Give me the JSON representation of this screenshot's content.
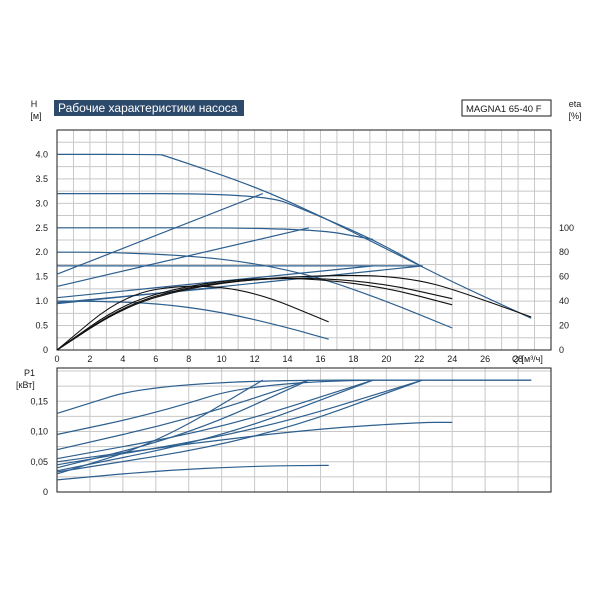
{
  "header": {
    "title": "Рабочие характеристики насоса",
    "model": "MAGNA1 65-40 F"
  },
  "chart_data": [
    {
      "type": "line",
      "title": "Рабочие характеристики насоса",
      "ylabel_name": "H",
      "ylabel_unit": "[м]",
      "y2label_name": "eta",
      "y2label_unit": "[%]",
      "xlabel": "Q [м³/ч]",
      "xlim": [
        0,
        30
      ],
      "ylim": [
        0,
        4.5
      ],
      "y2lim": [
        0,
        180
      ],
      "x_ticks": [
        "0",
        "2",
        "4",
        "6",
        "8",
        "10",
        "12",
        "14",
        "16",
        "18",
        "20",
        "22",
        "24",
        "26",
        "28"
      ],
      "y_ticks": [
        "0",
        "0.5",
        "1.0",
        "1.5",
        "2.0",
        "2.5",
        "3.0",
        "3.5",
        "4.0"
      ],
      "y2_ticks": [
        "0",
        "20",
        "40",
        "60",
        "80",
        "100"
      ],
      "grid": true,
      "head_series": [
        {
          "x": [
            0,
            6.2,
            6.5,
            12,
            16,
            20,
            24,
            28.8
          ],
          "y": [
            4.0,
            4.0,
            3.98,
            3.35,
            2.74,
            2.07,
            1.39,
            0.65
          ]
        },
        {
          "x": [
            0,
            12.5,
            15.3,
            19.2,
            22.2
          ],
          "y": [
            3.2,
            3.2,
            2.83,
            2.26,
            1.7
          ]
        },
        {
          "x": [
            0,
            15.3,
            19.2
          ],
          "y": [
            2.5,
            2.5,
            2.26
          ]
        },
        {
          "x": [
            0,
            22.2
          ],
          "y": [
            1.72,
            1.72
          ]
        },
        {
          "x": [
            0,
            3,
            8,
            12,
            16,
            20,
            24
          ],
          "y": [
            2.0,
            2.0,
            1.93,
            1.78,
            1.48,
            1.0,
            0.45
          ]
        },
        {
          "x": [
            0,
            2,
            6,
            10,
            14,
            16.5
          ],
          "y": [
            1.0,
            1.0,
            0.96,
            0.78,
            0.46,
            0.22
          ]
        },
        {
          "x": [
            0,
            12.5
          ],
          "y": [
            1.55,
            3.2
          ]
        },
        {
          "x": [
            0,
            15.3
          ],
          "y": [
            1.3,
            2.5
          ]
        },
        {
          "x": [
            0,
            19.2
          ],
          "y": [
            1.07,
            1.72
          ]
        },
        {
          "x": [
            0,
            22.2
          ],
          "y": [
            0.95,
            1.72
          ]
        },
        {
          "x": [
            0,
            10
          ],
          "y": [
            0.97,
            1.28
          ]
        }
      ],
      "efficiency_series": [
        {
          "x": [
            0,
            4,
            8,
            12,
            16,
            19.5,
            22,
            24,
            28.8
          ],
          "y": [
            0,
            35,
            51,
            58,
            61,
            61,
            57,
            50,
            27
          ]
        },
        {
          "x": [
            0,
            4,
            8,
            12,
            16,
            20,
            24
          ],
          "y": [
            0,
            38,
            53,
            59,
            58,
            51,
            37
          ]
        },
        {
          "x": [
            0,
            4,
            8,
            12,
            16.5
          ],
          "y": [
            0,
            45,
            54,
            48,
            23
          ]
        },
        {
          "x": [
            0,
            4,
            8,
            12,
            16,
            20,
            24
          ],
          "y": [
            0,
            36,
            52,
            58,
            59,
            54,
            42
          ]
        }
      ]
    },
    {
      "type": "line",
      "ylabel_name": "P1",
      "ylabel_unit": "[кВт]",
      "xlim": [
        0,
        30
      ],
      "ylim": [
        0,
        0.205
      ],
      "y_ticks": [
        "0",
        "0,05",
        "0,10",
        "0,15"
      ],
      "grid": true,
      "power_series": [
        {
          "x": [
            0,
            6.5,
            28.8
          ],
          "y": [
            0.13,
            0.185,
            0.185
          ]
        },
        {
          "x": [
            0,
            6,
            12.5,
            28.8
          ],
          "y": [
            0.095,
            0.13,
            0.185,
            0.185
          ]
        },
        {
          "x": [
            0,
            8,
            15.3
          ],
          "y": [
            0.07,
            0.12,
            0.185
          ]
        },
        {
          "x": [
            0,
            10,
            19.2
          ],
          "y": [
            0.055,
            0.105,
            0.185
          ]
        },
        {
          "x": [
            0,
            12,
            22.2
          ],
          "y": [
            0.045,
            0.1,
            0.185
          ]
        },
        {
          "x": [
            0,
            6,
            12.5
          ],
          "y": [
            0.03,
            0.08,
            0.185
          ]
        },
        {
          "x": [
            0,
            8,
            15.3
          ],
          "y": [
            0.04,
            0.095,
            0.185
          ]
        },
        {
          "x": [
            0,
            10,
            19.2
          ],
          "y": [
            0.035,
            0.09,
            0.185
          ]
        },
        {
          "x": [
            0,
            12,
            22.2
          ],
          "y": [
            0.033,
            0.085,
            0.185
          ]
        },
        {
          "x": [
            0,
            8,
            16,
            22,
            24
          ],
          "y": [
            0.05,
            0.08,
            0.105,
            0.115,
            0.115
          ]
        },
        {
          "x": [
            0,
            6,
            12,
            16.5
          ],
          "y": [
            0.02,
            0.035,
            0.043,
            0.044
          ]
        }
      ]
    }
  ]
}
